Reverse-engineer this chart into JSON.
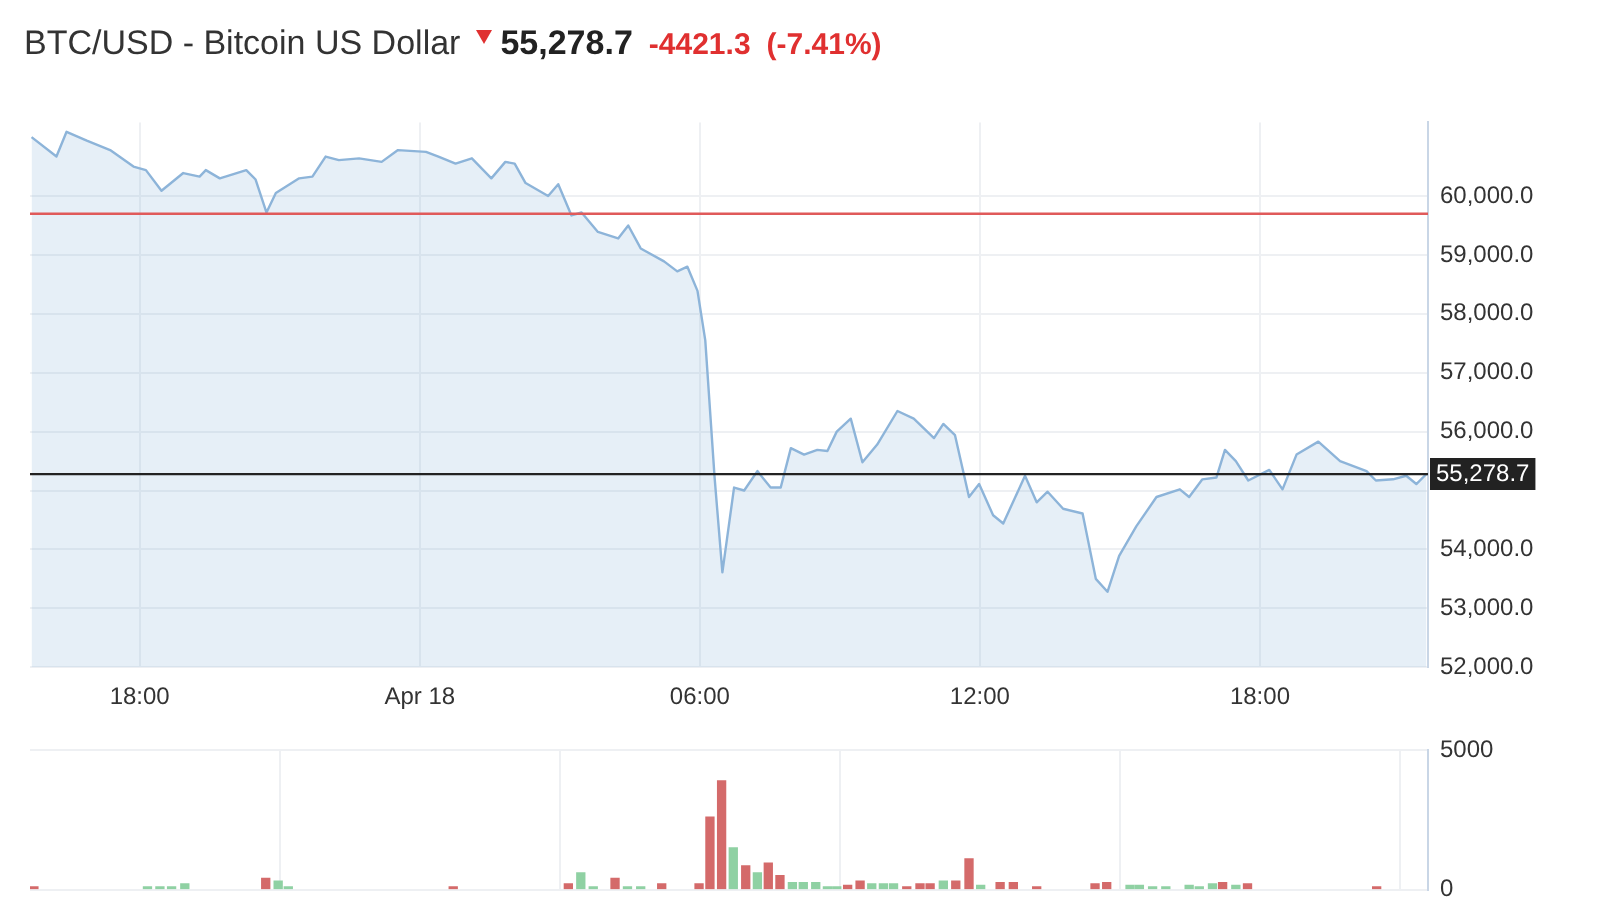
{
  "chart_data": [
    {
      "type": "area",
      "title": "BTC/USD - Bitcoin US Dollar",
      "annotations": [
        "55,278.7",
        "-4421.3",
        "(-7.41%)"
      ],
      "x": [
        "--04-17T15:41",
        "--04-17T16:13",
        "--04-17T16:26",
        "--04-17T16:52",
        "--04-17T17:22",
        "--04-17T17:52",
        "--04-17T18:08",
        "--04-17T18:28",
        "--04-17T18:56",
        "--04-17T19:17",
        "--04-17T19:25",
        "--04-17T19:43",
        "--04-17T20:17",
        "--04-17T20:29",
        "--04-17T20:43",
        "--04-17T20:55",
        "--04-17T21:25",
        "--04-17T21:42",
        "--04-17T21:59",
        "--04-17T22:16",
        "--04-17T22:42",
        "--04-17T23:11",
        "--04-17T23:32",
        "--04-18T00:08",
        "--04-18T00:24",
        "--04-18T00:46",
        "--04-18T01:07",
        "--04-18T01:32",
        "--04-18T01:50",
        "--04-18T02:02",
        "--04-18T02:16",
        "--04-18T02:45",
        "--04-18T02:58",
        "--04-18T03:15",
        "--04-18T03:28",
        "--04-18T03:49",
        "--04-18T04:15",
        "--04-18T04:28",
        "--04-18T04:44",
        "--04-18T05:14",
        "--04-18T05:31",
        "--04-18T05:44",
        "--04-18T05:57",
        "--04-18T06:07",
        "--04-18T06:19",
        "--04-18T06:29",
        "--04-18T06:44",
        "--04-18T06:57",
        "--04-18T07:14",
        "--04-18T07:31",
        "--04-18T07:44",
        "--04-18T07:57",
        "--04-18T08:14",
        "--04-18T08:31",
        "--04-18T08:44",
        "--04-18T08:56",
        "--04-18T09:14",
        "--04-18T09:29",
        "--04-18T09:48",
        "--04-18T10:14",
        "--04-18T10:35",
        "--04-18T11:01",
        "--04-18T11:13",
        "--04-18T11:28",
        "--04-18T11:46",
        "--04-18T11:59",
        "--04-18T12:17",
        "--04-18T12:30",
        "--04-18T12:58",
        "--04-18T13:13",
        "--04-18T13:27",
        "--04-18T13:47",
        "--04-18T14:12",
        "--04-18T14:29",
        "--04-18T14:44",
        "--04-18T14:59",
        "--04-18T15:21",
        "--04-18T15:47",
        "--04-18T16:17",
        "--04-18T16:29",
        "--04-18T16:46",
        "--04-18T17:04",
        "--04-18T17:15",
        "--04-18T17:29",
        "--04-18T17:45",
        "--04-18T18:12",
        "--04-18T18:29",
        "--04-18T18:47",
        "--04-18T19:15",
        "--04-18T19:43",
        "--04-18T20:17",
        "--04-18T20:29",
        "--04-18T20:51",
        "--04-18T21:08",
        "--04-18T21:21",
        "--04-18T21:34"
      ],
      "series": [
        {
          "color": "#8db4d9",
          "values": [
            61000,
            60670,
            61090,
            60940,
            60780,
            60500,
            60440,
            60090,
            60390,
            60330,
            60440,
            60300,
            60440,
            60280,
            59720,
            60050,
            60300,
            60330,
            60670,
            60610,
            60640,
            60580,
            60780,
            60750,
            60670,
            60550,
            60640,
            60300,
            60580,
            60550,
            60220,
            60000,
            60200,
            59670,
            59720,
            59390,
            59280,
            59500,
            59110,
            58890,
            58720,
            58800,
            58390,
            57550,
            55220,
            53610,
            55050,
            55000,
            55330,
            55050,
            55050,
            55720,
            55610,
            55690,
            55670,
            56000,
            56220,
            55480,
            55780,
            56350,
            56220,
            55890,
            56130,
            55940,
            54890,
            55110,
            54580,
            54440,
            55250,
            54800,
            54980,
            54690,
            54610,
            53500,
            53280,
            53890,
            54390,
            54890,
            55020,
            54890,
            55190,
            55220,
            55690,
            55500,
            55170,
            55350,
            55020,
            55610,
            55830,
            55500,
            55330,
            55170,
            55190,
            55250,
            55110,
            55280
          ]
        }
      ],
      "xlim": [
        "--04-17T15:39",
        "--04-18T21:36"
      ],
      "ylim": [
        52000,
        61250
      ],
      "xticks": [
        {
          "value": "--04-17T18:00",
          "label": "18:00"
        },
        {
          "value": "--04-18T00:00",
          "label": "Apr 18"
        },
        {
          "value": "--04-18T06:00",
          "label": "06:00"
        },
        {
          "value": "--04-18T12:00",
          "label": "12:00"
        },
        {
          "value": "--04-18T18:00",
          "label": "18:00"
        }
      ],
      "yticks": [
        {
          "value": 52000,
          "label": "52,000.0"
        },
        {
          "value": 53000,
          "label": "53,000.0"
        },
        {
          "value": 54000,
          "label": "54,000.0"
        },
        {
          "value": 55000,
          "label": null
        },
        {
          "value": 56000,
          "label": "56,000.0"
        },
        {
          "value": 57000,
          "label": "57,000.0"
        },
        {
          "value": 58000,
          "label": "58,000.0"
        },
        {
          "value": 59000,
          "label": "59,000.0"
        },
        {
          "value": 60000,
          "label": "60,000.0"
        }
      ],
      "ref_lines": [
        {
          "axis": "y",
          "value": 59700,
          "color": "#e05a5a"
        },
        {
          "axis": "y",
          "value": 55278.7,
          "label": "55,278.7",
          "color": "#222222"
        }
      ],
      "grid": true,
      "legend": false
    },
    {
      "type": "bar",
      "x": [
        "--04-17T15:44",
        "--04-17T18:10",
        "--04-17T18:26",
        "--04-17T18:41",
        "--04-17T18:58",
        "--04-17T20:42",
        "--04-17T20:58",
        "--04-17T21:11",
        "--04-18T00:43",
        "--04-18T03:11",
        "--04-18T03:27",
        "--04-18T03:43",
        "--04-18T04:11",
        "--04-18T04:27",
        "--04-18T04:44",
        "--04-18T05:11",
        "--04-18T05:59",
        "--04-18T06:13",
        "--04-18T06:28",
        "--04-18T06:43",
        "--04-18T06:59",
        "--04-18T07:14",
        "--04-18T07:28",
        "--04-18T07:43",
        "--04-18T07:59",
        "--04-18T08:13",
        "--04-18T08:29",
        "--04-18T08:44",
        "--04-18T08:56",
        "--04-18T09:10",
        "--04-18T09:26",
        "--04-18T09:41",
        "--04-18T09:56",
        "--04-18T10:09",
        "--04-18T10:26",
        "--04-18T10:43",
        "--04-18T10:56",
        "--04-18T11:13",
        "--04-18T11:29",
        "--04-18T11:46",
        "--04-18T12:01",
        "--04-18T12:26",
        "--04-18T12:43",
        "--04-18T13:13",
        "--04-18T14:28",
        "--04-18T14:43",
        "--04-18T15:13",
        "--04-18T15:25",
        "--04-18T15:42",
        "--04-18T15:59",
        "--04-18T16:29",
        "--04-18T16:42",
        "--04-18T16:59",
        "--04-18T17:12",
        "--04-18T17:29",
        "--04-18T17:44",
        "--04-18T20:30"
      ],
      "values": [
        100,
        100,
        100,
        100,
        200,
        400,
        300,
        100,
        100,
        200,
        600,
        100,
        400,
        100,
        100,
        200,
        200,
        2600,
        3900,
        1500,
        850,
        600,
        950,
        500,
        250,
        250,
        250,
        100,
        100,
        150,
        300,
        200,
        200,
        200,
        100,
        200,
        200,
        300,
        300,
        1100,
        150,
        250,
        250,
        100,
        200,
        250,
        150,
        150,
        100,
        100,
        150,
        100,
        200,
        250,
        150,
        200,
        100
      ],
      "colors": [
        "#d46a6a",
        "#8fd1a3",
        "#8fd1a3",
        "#8fd1a3",
        "#8fd1a3",
        "#d46a6a",
        "#8fd1a3",
        "#8fd1a3",
        "#d46a6a",
        "#d46a6a",
        "#8fd1a3",
        "#8fd1a3",
        "#d46a6a",
        "#8fd1a3",
        "#8fd1a3",
        "#d46a6a",
        "#d46a6a",
        "#d46a6a",
        "#d46a6a",
        "#8fd1a3",
        "#d46a6a",
        "#8fd1a3",
        "#d46a6a",
        "#d46a6a",
        "#8fd1a3",
        "#8fd1a3",
        "#8fd1a3",
        "#8fd1a3",
        "#8fd1a3",
        "#d46a6a",
        "#d46a6a",
        "#8fd1a3",
        "#8fd1a3",
        "#8fd1a3",
        "#d46a6a",
        "#d46a6a",
        "#d46a6a",
        "#8fd1a3",
        "#d46a6a",
        "#d46a6a",
        "#8fd1a3",
        "#d46a6a",
        "#d46a6a",
        "#d46a6a",
        "#d46a6a",
        "#d46a6a",
        "#8fd1a3",
        "#8fd1a3",
        "#8fd1a3",
        "#8fd1a3",
        "#8fd1a3",
        "#8fd1a3",
        "#8fd1a3",
        "#d46a6a",
        "#8fd1a3",
        "#d46a6a",
        "#d46a6a"
      ],
      "xlim": [
        "--04-17T15:39",
        "--04-18T21:36"
      ],
      "ylim": [
        0,
        5000
      ],
      "xticks": [
        "--04-17T18:00",
        "--04-18T00:00",
        "--04-18T06:00",
        "--04-18T12:00",
        "--04-18T18:00"
      ],
      "yticks": [
        0,
        5000
      ],
      "tick_labels": "y",
      "grid": true,
      "legend": false
    }
  ]
}
